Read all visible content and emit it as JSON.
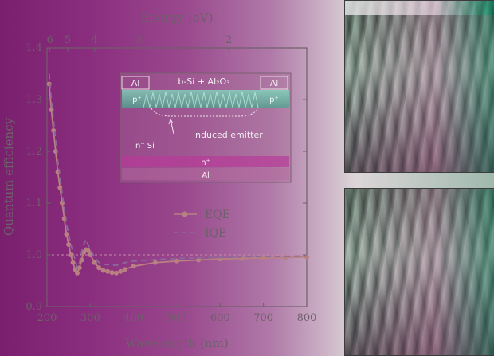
{
  "chart_data": {
    "type": "line",
    "xlabel": "Wavelength (nm)",
    "ylabel": "Quantum efficiency",
    "top_axis_label": "Energy (eV)",
    "xlim": [
      200,
      800
    ],
    "ylim": [
      0.9,
      1.4
    ],
    "x_ticks": [
      200,
      300,
      400,
      500,
      600,
      700,
      800
    ],
    "y_ticks": [
      0.9,
      1.0,
      1.1,
      1.2,
      1.3,
      1.4
    ],
    "top_ticks": [
      6,
      5,
      4,
      3,
      2
    ],
    "reference_line": 1.0,
    "legend_position": "center-right",
    "series": [
      {
        "name": "EQE",
        "style": "solid-markers",
        "color": "#b88080",
        "x": [
          205,
          210,
          215,
          220,
          225,
          230,
          235,
          240,
          245,
          250,
          255,
          260,
          265,
          270,
          275,
          280,
          285,
          290,
          295,
          300,
          310,
          320,
          330,
          340,
          350,
          360,
          370,
          380,
          400,
          450,
          500,
          550,
          600,
          650,
          700,
          750,
          800
        ],
        "y": [
          1.33,
          1.28,
          1.24,
          1.2,
          1.16,
          1.13,
          1.1,
          1.07,
          1.04,
          1.02,
          1.0,
          0.985,
          0.972,
          0.965,
          0.975,
          0.99,
          1.005,
          1.01,
          1.008,
          1.0,
          0.985,
          0.975,
          0.97,
          0.968,
          0.966,
          0.965,
          0.968,
          0.972,
          0.978,
          0.985,
          0.988,
          0.99,
          0.992,
          0.993,
          0.994,
          0.995,
          0.996
        ]
      },
      {
        "name": "IQE",
        "style": "dashed",
        "color": "#8a6a9a",
        "x": [
          205,
          210,
          215,
          220,
          225,
          230,
          235,
          240,
          245,
          250,
          255,
          260,
          265,
          270,
          275,
          280,
          285,
          290,
          295,
          300,
          310,
          320,
          330,
          340,
          350,
          360,
          370,
          380,
          400,
          450,
          500,
          550,
          600,
          650,
          700,
          750,
          800
        ],
        "y": [
          1.35,
          1.3,
          1.26,
          1.22,
          1.18,
          1.15,
          1.12,
          1.09,
          1.06,
          1.04,
          1.02,
          1.005,
          0.99,
          0.975,
          0.985,
          1.005,
          1.02,
          1.03,
          1.02,
          1.01,
          0.995,
          0.985,
          0.982,
          0.981,
          0.98,
          0.98,
          0.982,
          0.985,
          0.988,
          0.991,
          0.993,
          0.994,
          0.995,
          0.996,
          0.997,
          0.997,
          0.998
        ]
      }
    ]
  },
  "inset": {
    "contact_label": "Al",
    "pplus_label": "p⁺",
    "bsi_label": "b-Si + Al₂O₃",
    "emitter_label": "induced emitter",
    "bulk_label": "n⁻ Si",
    "nplus_label": "n⁺",
    "back_contact_label": "Al"
  },
  "colors": {
    "axis": "#6e5f6a",
    "eqe": "#b88080",
    "iqe": "#8a6a9a",
    "reference": "#c88aa8"
  }
}
